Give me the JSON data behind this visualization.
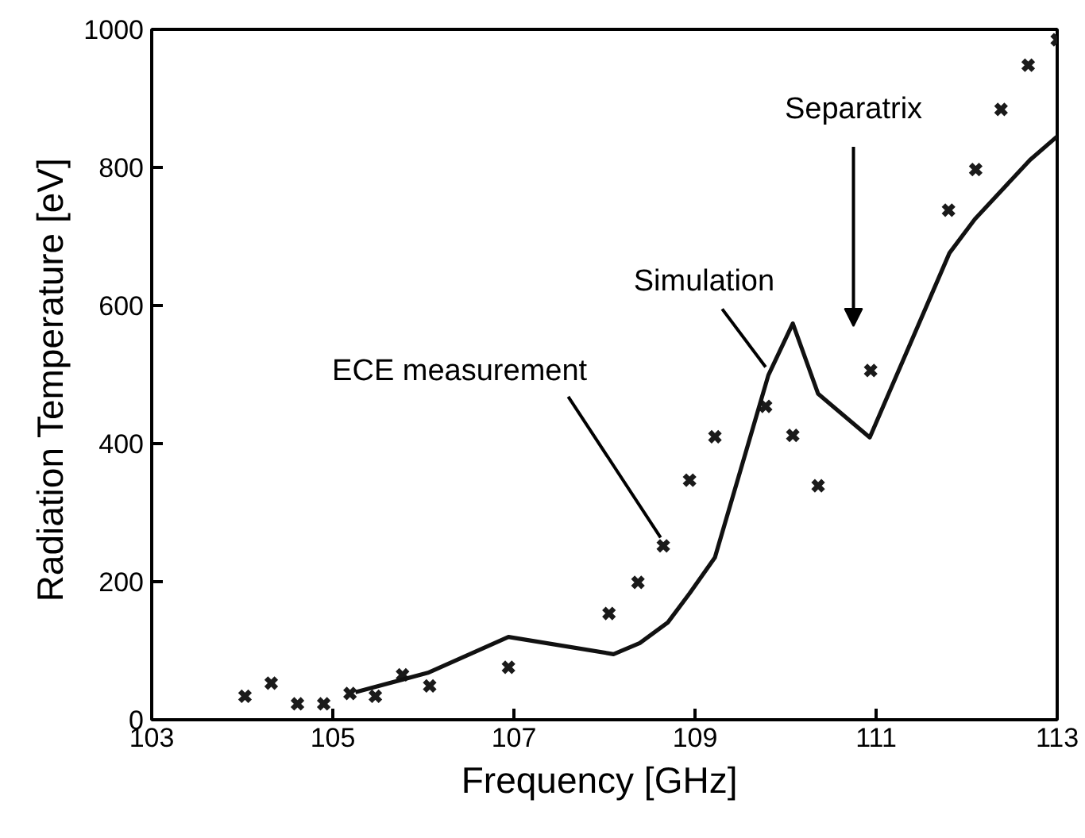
{
  "chart_data": {
    "type": "scatter",
    "xlabel": "Frequency  [GHz]",
    "ylabel": "Radiation Temperature  [eV]",
    "xlim": [
      103,
      113
    ],
    "xticks": [
      103,
      105,
      107,
      109,
      111,
      113
    ],
    "ylim": [
      0,
      1000
    ],
    "yticks": [
      0,
      200,
      400,
      600,
      800,
      1000
    ],
    "grid": false,
    "series": [
      {
        "type": "scatter",
        "marker": "cross",
        "color": "#1a1a1a",
        "x": [
          104.03,
          104.32,
          104.61,
          104.9,
          105.19,
          105.47,
          105.77,
          106.07,
          106.94,
          108.05,
          108.37,
          108.65,
          108.94,
          109.22,
          109.78,
          110.08,
          110.36,
          110.94,
          111.8,
          112.1,
          112.38,
          112.68,
          113.0
        ],
        "values": [
          34,
          53,
          23,
          23,
          38,
          34,
          65,
          49,
          76,
          154,
          199,
          252,
          347,
          410,
          454,
          412,
          339,
          506,
          738,
          797,
          884,
          948,
          985
        ]
      },
      {
        "type": "line",
        "marker": "none",
        "line_style": "solid",
        "color": "#111111",
        "x": [
          105.25,
          106.05,
          106.94,
          108.1,
          108.39,
          108.7,
          108.94,
          109.22,
          109.81,
          110.08,
          110.36,
          110.93,
          111.81,
          112.09,
          112.7,
          113.0
        ],
        "values": [
          40,
          68,
          120,
          95,
          111,
          141,
          183,
          235,
          499,
          574,
          472,
          409,
          676,
          725,
          811,
          845
        ]
      }
    ],
    "annotations": [
      {
        "text": "ECE measurement",
        "x": 108.65,
        "y": 252
      },
      {
        "text": "Simulation",
        "x": 109.81,
        "y": 499
      },
      "Separatrix"
    ]
  }
}
